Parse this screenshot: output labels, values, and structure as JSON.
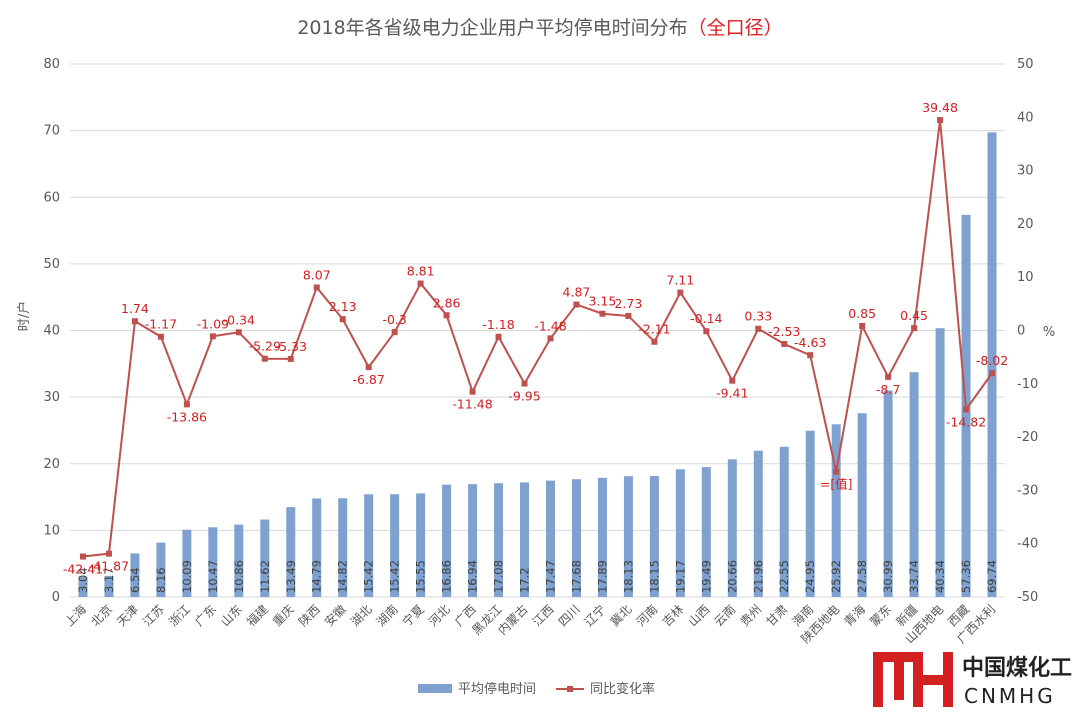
{
  "chart_data": {
    "type": "bar+line",
    "title": "2018年各省级电力企业用户平均停电时间分布",
    "subtitle": "（全口径）",
    "ylabel": "时/户",
    "y2label": "%",
    "ylim": [
      0,
      80
    ],
    "y2lim": [
      -50,
      50
    ],
    "yticks": [
      "0",
      "10",
      "20",
      "30",
      "40",
      "50",
      "60",
      "70",
      "80"
    ],
    "y2ticks": [
      "-50",
      "-40",
      "-30",
      "-20",
      "-10",
      "0",
      "10",
      "20",
      "30",
      "40",
      "50"
    ],
    "grid": true,
    "legend_position": "bottom",
    "categories": [
      "上海",
      "北京",
      "天津",
      "江苏",
      "浙江",
      "广东",
      "山东",
      "福建",
      "重庆",
      "陕西",
      "安徽",
      "湖北",
      "湖南",
      "宁夏",
      "河北",
      "广西",
      "黑龙江",
      "内蒙古",
      "江西",
      "四川",
      "辽宁",
      "冀北",
      "河南",
      "吉林",
      "山西",
      "云南",
      "贵州",
      "甘肃",
      "海南",
      "陕西地电",
      "青海",
      "蒙东",
      "新疆",
      "山西地电",
      "西藏",
      "广西水利"
    ],
    "series": [
      {
        "name": "平均停电时间",
        "type": "bar",
        "axis": "left",
        "color": "#7ea1cf",
        "values": [
          3.04,
          3.17,
          6.54,
          8.16,
          10.09,
          10.47,
          10.86,
          11.62,
          13.49,
          14.79,
          14.82,
          15.42,
          15.42,
          15.55,
          16.86,
          16.94,
          17.08,
          17.2,
          17.47,
          17.68,
          17.89,
          18.13,
          18.15,
          19.17,
          19.49,
          20.66,
          21.96,
          22.55,
          24.95,
          25.92,
          27.58,
          30.99,
          33.74,
          40.34,
          57.36,
          69.74
        ],
        "labels": [
          "3.04",
          "3.17",
          "6.54",
          "8.16",
          "10.09",
          "10.47",
          "10.86",
          "11.62",
          "13.49",
          "14.79",
          "14.82",
          "15.42",
          "15.42",
          "15.55",
          "16.86",
          "16.94",
          "17.08",
          "17.2",
          "17.47",
          "17.68",
          "17.89",
          "18.13",
          "18.15",
          "19.17",
          "19.49",
          "20.66",
          "21.96",
          "22.55",
          "24.95",
          "25.92",
          "27.58",
          "30.99",
          "33.74",
          "40.34",
          "57.36",
          "69.74"
        ]
      },
      {
        "name": "同比变化率",
        "type": "line",
        "axis": "right",
        "color": "#c0504d",
        "values": [
          -42.41,
          -41.87,
          1.74,
          -1.17,
          -13.86,
          -1.09,
          -0.34,
          -5.29,
          -5.33,
          8.07,
          2.13,
          -6.87,
          -0.3,
          8.81,
          2.86,
          -11.48,
          -1.18,
          -9.95,
          -1.48,
          4.87,
          3.15,
          2.73,
          -2.11,
          7.11,
          -0.14,
          -9.41,
          0.33,
          -2.53,
          -4.63,
          -26.5,
          0.85,
          -8.7,
          0.45,
          39.48,
          -14.82,
          -8.02
        ],
        "labels": [
          "-42.41",
          "-41.87",
          "1.74",
          "-1.17",
          "-13.86",
          "-1.09",
          "-0.34",
          "-5.29",
          "-5.33",
          "8.07",
          "2.13",
          "-6.87",
          "-0.3",
          "8.81",
          "2.86",
          "-11.48",
          "-1.18",
          "-9.95",
          "-1.48",
          "4.87",
          "3.15",
          "2.73",
          "-2.11",
          "7.11",
          "-0.14",
          "-9.41",
          "0.33",
          "-2.53",
          "-4.63",
          "=[值]",
          "0.85",
          "-8.7",
          "0.45",
          "39.48",
          "-14.82",
          "-8.02"
        ]
      }
    ]
  },
  "watermark": {
    "logo_text_cn": "中国煤化工",
    "logo_text_en": "CNMHG",
    "logo_color": "#d42020"
  }
}
